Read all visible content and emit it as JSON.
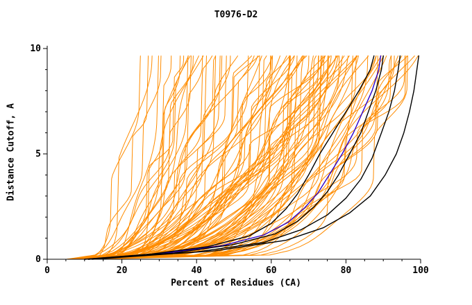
{
  "chart_data": {
    "type": "line",
    "title": "T0976-D2",
    "xlabel": "Percent of Residues (CA)",
    "ylabel": "Distance Cutoff, A",
    "xlim": [
      0,
      100
    ],
    "ylim": [
      0,
      10
    ],
    "xticks": [
      0,
      20,
      40,
      60,
      80,
      100
    ],
    "xtick_labels": [
      "0",
      "20",
      "40",
      "60",
      "80",
      "100"
    ],
    "x_minor_step": 5,
    "yticks": [
      0,
      5,
      10
    ],
    "ytick_labels": [
      "0",
      "5",
      "10"
    ],
    "y_minor_step": 1,
    "grid": false,
    "legend": "none",
    "curve_top_y": 9.65,
    "colors": {
      "ensemble": "#ff8c00",
      "highlight": "#000000",
      "reference": "#2b00cc",
      "axis": "#000000",
      "background": "#ffffff"
    },
    "ensemble": {
      "description": "orange prediction-model curves fanning from lower-left",
      "count": 100,
      "seed": 1337,
      "x_start_min": 5,
      "x_start_max": 13,
      "shape_min": 0.12,
      "shape_max": 0.5,
      "wobble_min": 1.2,
      "wobble_max": 4.5,
      "groups": [
        {
          "weight": 0.18,
          "xmax_min": 23,
          "xmax_max": 45
        },
        {
          "weight": 0.34,
          "xmax_min": 45,
          "xmax_max": 72
        },
        {
          "weight": 0.48,
          "xmax_min": 70,
          "xmax_max": 98
        }
      ]
    },
    "highlight_series": [
      {
        "name": "black-model-1",
        "points": [
          [
            10,
            0
          ],
          [
            28,
            0.25
          ],
          [
            43,
            0.6
          ],
          [
            54,
            1.1
          ],
          [
            60,
            1.7
          ],
          [
            64,
            2.4
          ],
          [
            67,
            3.1
          ],
          [
            70,
            4
          ],
          [
            73,
            5
          ],
          [
            76.5,
            6
          ],
          [
            80,
            7
          ],
          [
            83.5,
            8
          ],
          [
            86.5,
            9
          ],
          [
            87.5,
            9.65
          ]
        ]
      },
      {
        "name": "black-model-2",
        "points": [
          [
            11,
            0
          ],
          [
            34,
            0.3
          ],
          [
            50,
            0.7
          ],
          [
            61,
            1.2
          ],
          [
            67,
            1.8
          ],
          [
            71.5,
            2.5
          ],
          [
            75,
            3.2
          ],
          [
            78,
            4
          ],
          [
            81,
            5
          ],
          [
            84,
            6
          ],
          [
            86,
            7
          ],
          [
            88,
            8
          ],
          [
            89.5,
            9
          ],
          [
            90,
            9.65
          ]
        ]
      },
      {
        "name": "black-model-3",
        "points": [
          [
            11,
            0
          ],
          [
            40,
            0.35
          ],
          [
            58,
            0.8
          ],
          [
            68,
            1.4
          ],
          [
            75,
            2.1
          ],
          [
            80,
            2.9
          ],
          [
            84,
            3.8
          ],
          [
            87,
            4.8
          ],
          [
            89.5,
            6
          ],
          [
            91.5,
            7
          ],
          [
            93,
            8
          ],
          [
            94,
            9
          ],
          [
            94.5,
            9.65
          ]
        ]
      },
      {
        "name": "black-model-4",
        "points": [
          [
            12,
            0
          ],
          [
            45,
            0.4
          ],
          [
            64,
            0.9
          ],
          [
            74,
            1.5
          ],
          [
            81,
            2.2
          ],
          [
            86.5,
            3
          ],
          [
            90.5,
            4
          ],
          [
            93.5,
            5
          ],
          [
            95.5,
            6
          ],
          [
            97,
            7
          ],
          [
            98.2,
            8
          ],
          [
            99,
            9
          ],
          [
            99.5,
            9.65
          ]
        ]
      }
    ],
    "reference_series": {
      "name": "blue-model",
      "points": [
        [
          10,
          0
        ],
        [
          31,
          0.28
        ],
        [
          47,
          0.65
        ],
        [
          58,
          1.15
        ],
        [
          64.5,
          1.75
        ],
        [
          69,
          2.45
        ],
        [
          72.5,
          3.15
        ],
        [
          75.5,
          4
        ],
        [
          79,
          5
        ],
        [
          82,
          6
        ],
        [
          84.5,
          7
        ],
        [
          87,
          8
        ],
        [
          88.8,
          9
        ],
        [
          89.3,
          9.65
        ]
      ]
    }
  }
}
